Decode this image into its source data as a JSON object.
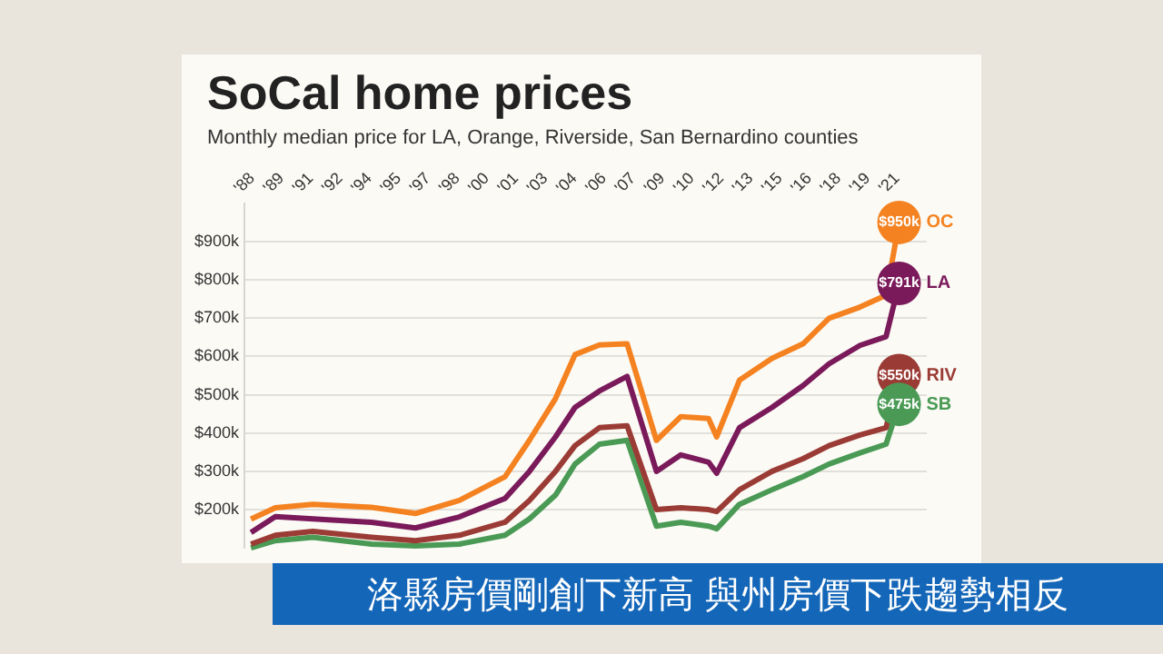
{
  "chart_data": {
    "type": "line",
    "title": "SoCal home prices",
    "subtitle": "Monthly median price for LA, Orange, Riverside, San Bernardino counties",
    "annotations": [
      "洛縣房價剛創下新高 與州房價下跌趨勢相反"
    ],
    "x": [
      "1988-01",
      "1989-04",
      "1991-03",
      "1994-03",
      "1996-06",
      "1998-09",
      "2001-01",
      "2002-04",
      "2003-08",
      "2004-08",
      "2005-11",
      "2007-04",
      "2008-10",
      "2010-01",
      "2011-06",
      "2011-11",
      "2013-01",
      "2014-09",
      "2016-04",
      "2017-08",
      "2019-03",
      "2020-07",
      "2021-03"
    ],
    "xlim": [
      "1987-09",
      "2022-08"
    ],
    "xticks": [
      {
        "value": "1988-01",
        "label": "'88"
      },
      {
        "value": "1989-07",
        "label": "'89"
      },
      {
        "value": "1991-01",
        "label": "'91"
      },
      {
        "value": "1992-07",
        "label": "'92"
      },
      {
        "value": "1994-01",
        "label": "'94"
      },
      {
        "value": "1995-07",
        "label": "'95"
      },
      {
        "value": "1997-01",
        "label": "'97"
      },
      {
        "value": "1998-07",
        "label": "'98"
      },
      {
        "value": "2000-01",
        "label": "'00"
      },
      {
        "value": "2001-07",
        "label": "'01"
      },
      {
        "value": "2003-01",
        "label": "'03"
      },
      {
        "value": "2004-07",
        "label": "'04"
      },
      {
        "value": "2006-01",
        "label": "'06"
      },
      {
        "value": "2007-07",
        "label": "'07"
      },
      {
        "value": "2009-01",
        "label": "'09"
      },
      {
        "value": "2010-07",
        "label": "'10"
      },
      {
        "value": "2012-01",
        "label": "'12"
      },
      {
        "value": "2013-07",
        "label": "'13"
      },
      {
        "value": "2015-01",
        "label": "'15"
      },
      {
        "value": "2016-07",
        "label": "'16"
      },
      {
        "value": "2018-01",
        "label": "'18"
      },
      {
        "value": "2019-07",
        "label": "'19"
      },
      {
        "value": "2021-01",
        "label": "'21"
      }
    ],
    "ylim": [
      100,
      1000
    ],
    "yticks": [
      {
        "value": 200,
        "label": "$200k"
      },
      {
        "value": 300,
        "label": "$300k"
      },
      {
        "value": 400,
        "label": "$400k"
      },
      {
        "value": 500,
        "label": "$500k"
      },
      {
        "value": 600,
        "label": "$600k"
      },
      {
        "value": 700,
        "label": "$700k"
      },
      {
        "value": 800,
        "label": "$800k"
      },
      {
        "value": 900,
        "label": "$900k"
      }
    ],
    "grid": "y",
    "legend": false,
    "marker": "none",
    "line_style": "solid",
    "series": [
      {
        "name": "OC",
        "color": "#f58220",
        "values": [
          175,
          205,
          214,
          206,
          190,
          224,
          286,
          381,
          490,
          605,
          630,
          633,
          381,
          443,
          438,
          390,
          538,
          595,
          633,
          700,
          729,
          760,
          950
        ],
        "value_labels": [
          null,
          null,
          null,
          null,
          null,
          null,
          null,
          null,
          null,
          null,
          null,
          null,
          null,
          null,
          null,
          null,
          null,
          null,
          null,
          null,
          null,
          null,
          "$950k"
        ]
      },
      {
        "name": "LA",
        "color": "#7a1a5a",
        "values": [
          140,
          182,
          176,
          167,
          152,
          181,
          229,
          300,
          390,
          467,
          510,
          548,
          300,
          343,
          324,
          295,
          414,
          467,
          524,
          581,
          629,
          652,
          791
        ],
        "value_labels": [
          null,
          null,
          null,
          null,
          null,
          null,
          null,
          null,
          null,
          null,
          null,
          null,
          null,
          null,
          null,
          null,
          null,
          null,
          null,
          null,
          null,
          null,
          "$791k"
        ]
      },
      {
        "name": "RIV",
        "color": "#9b3b35",
        "values": [
          110,
          133,
          143,
          128,
          119,
          133,
          167,
          224,
          300,
          367,
          414,
          419,
          200,
          205,
          200,
          195,
          252,
          300,
          333,
          367,
          395,
          414,
          550
        ],
        "value_labels": [
          null,
          null,
          null,
          null,
          null,
          null,
          null,
          null,
          null,
          null,
          null,
          null,
          null,
          null,
          null,
          null,
          null,
          null,
          null,
          null,
          null,
          null,
          "$550k"
        ]
      },
      {
        "name": "SB",
        "color": "#4a9a55",
        "values": [
          100,
          119,
          128,
          110,
          105,
          110,
          133,
          176,
          238,
          319,
          371,
          381,
          157,
          167,
          157,
          150,
          214,
          252,
          286,
          319,
          348,
          371,
          475
        ],
        "value_labels": [
          null,
          null,
          null,
          null,
          null,
          null,
          null,
          null,
          null,
          null,
          null,
          null,
          null,
          null,
          null,
          null,
          null,
          null,
          null,
          null,
          null,
          null,
          "$475k"
        ]
      }
    ]
  }
}
